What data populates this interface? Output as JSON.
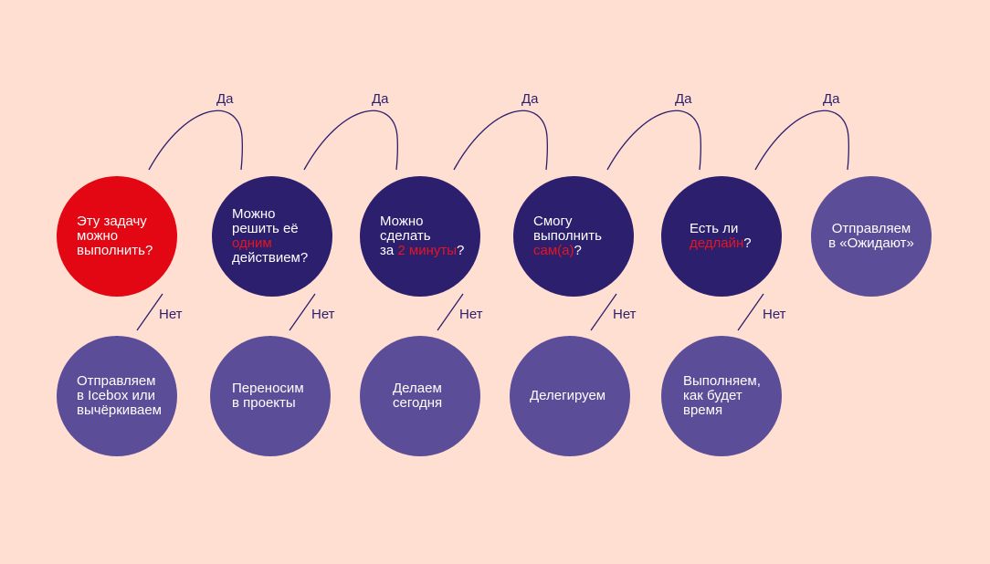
{
  "questions": [
    {
      "parts": [
        "Эту задачу",
        "можно",
        "выполнить?"
      ]
    },
    {
      "parts": [
        "Можно",
        "решить её",
        "одним",
        "действием?"
      ]
    },
    {
      "parts": [
        "Можно",
        "сделать",
        "за ",
        "2 минуты",
        "?"
      ]
    },
    {
      "parts": [
        "Смогу",
        "выполнить",
        "сам(а)",
        "?"
      ]
    },
    {
      "parts": [
        "Есть ли",
        "дедлайн",
        "?"
      ]
    }
  ],
  "final": {
    "parts": [
      "Отправляем",
      "в «Ожидают»"
    ]
  },
  "outcomes": [
    {
      "parts": [
        "Отправляем",
        "в Icebox или",
        "вычёркиваем"
      ]
    },
    {
      "parts": [
        "Переносим",
        "в проекты"
      ]
    },
    {
      "parts": [
        "Делаем",
        "сегодня"
      ]
    },
    {
      "parts": [
        "Делегируем"
      ]
    },
    {
      "parts": [
        "Выполняем,",
        "как будет",
        "время"
      ]
    }
  ],
  "yes_label": "Да",
  "no_label": "Нет",
  "colors": {
    "background": "#ffdfd2",
    "first_question": "#e30613",
    "question": "#2c1f6e",
    "outcome": "#5b4d97",
    "highlight": "#e8141e"
  }
}
